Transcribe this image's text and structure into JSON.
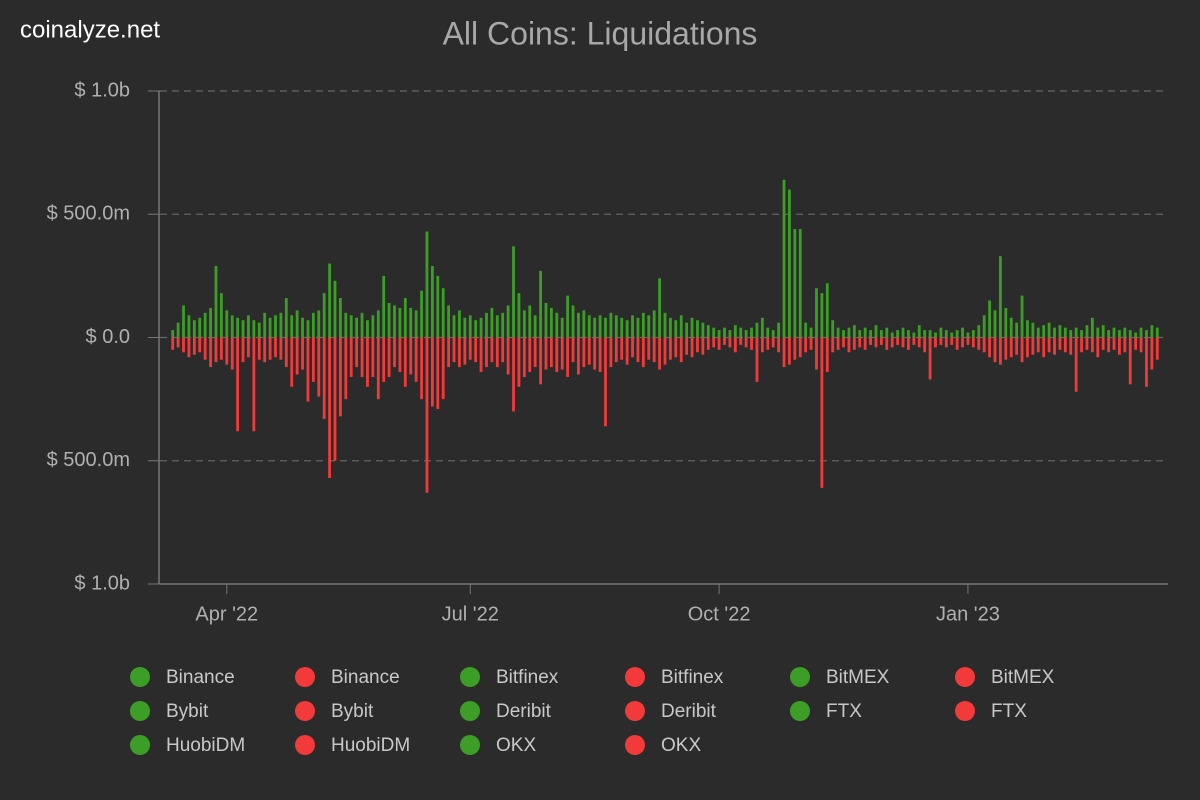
{
  "chart_data": {
    "type": "diverging-bar",
    "watermark": "coinalyze.net",
    "title": "All Coins: Liquidations",
    "ylim": [
      -1000000000,
      1000000000
    ],
    "yticks": [
      {
        "value": 1000000000,
        "label": "$ 1.0b"
      },
      {
        "value": 500000000,
        "label": "$ 500.0m"
      },
      {
        "value": 0,
        "label": "$ 0.0"
      },
      {
        "value": -500000000,
        "label": "$ 500.0m"
      },
      {
        "value": -1000000000,
        "label": "$ 1.0b"
      }
    ],
    "grid": true,
    "categories": [
      null,
      null,
      null,
      null,
      null,
      null,
      null,
      null,
      null,
      null,
      "Apr '22",
      null,
      null,
      null,
      null,
      null,
      null,
      null,
      null,
      null,
      null,
      null,
      null,
      null,
      null,
      null,
      null,
      null,
      null,
      null,
      null,
      null,
      null,
      null,
      null,
      null,
      null,
      null,
      null,
      null,
      null,
      null,
      null,
      null,
      null,
      null,
      null,
      null,
      null,
      null,
      null,
      null,
      null,
      null,
      null,
      "Jul '22",
      null,
      null,
      null,
      null,
      null,
      null,
      null,
      null,
      null,
      null,
      null,
      null,
      null,
      null,
      null,
      null,
      null,
      null,
      null,
      null,
      null,
      null,
      null,
      null,
      null,
      null,
      null,
      null,
      null,
      null,
      null,
      null,
      null,
      null,
      null,
      null,
      null,
      null,
      null,
      null,
      null,
      null,
      null,
      null,
      null,
      "Oct '22",
      null,
      null,
      null,
      null,
      null,
      null,
      null,
      null,
      null,
      null,
      null,
      null,
      null,
      null,
      null,
      null,
      null,
      null,
      null,
      null,
      null,
      null,
      null,
      null,
      null,
      null,
      null,
      null,
      null,
      null,
      null,
      null,
      null,
      null,
      null,
      null,
      null,
      null,
      null,
      null,
      null,
      null,
      null,
      null,
      null,
      "Jan '23",
      null,
      null,
      null,
      null,
      null,
      null,
      null,
      null,
      null,
      null,
      null,
      null,
      null,
      null,
      null,
      null,
      null,
      null,
      null,
      null,
      null,
      null,
      null,
      null,
      null,
      null,
      null,
      null,
      null,
      null,
      null,
      null,
      null,
      null,
      null
    ],
    "series": [
      {
        "color": "#3c9e26",
        "values": [
          30000000.0,
          60000000.0,
          130000000.0,
          90000000.0,
          70000000.0,
          80000000.0,
          100000000.0,
          120000000.0,
          290000000.0,
          180000000.0,
          110000000.0,
          90000000.0,
          80000000.0,
          70000000.0,
          90000000.0,
          70000000.0,
          60000000.0,
          100000000.0,
          80000000.0,
          90000000.0,
          100000000.0,
          160000000.0,
          90000000.0,
          110000000.0,
          80000000.0,
          70000000.0,
          100000000.0,
          110000000.0,
          180000000.0,
          300000000.0,
          230000000.0,
          160000000.0,
          100000000.0,
          90000000.0,
          80000000.0,
          100000000.0,
          70000000.0,
          90000000.0,
          110000000.0,
          250000000.0,
          140000000.0,
          130000000.0,
          120000000.0,
          160000000.0,
          120000000.0,
          110000000.0,
          190000000.0,
          430000000.0,
          290000000.0,
          250000000.0,
          200000000.0,
          130000000.0,
          90000000.0,
          110000000.0,
          80000000.0,
          90000000.0,
          70000000.0,
          80000000.0,
          100000000.0,
          120000000.0,
          90000000.0,
          100000000.0,
          130000000.0,
          370000000.0,
          180000000.0,
          110000000.0,
          130000000.0,
          90000000.0,
          270000000.0,
          140000000.0,
          120000000.0,
          100000000.0,
          80000000.0,
          170000000.0,
          130000000.0,
          100000000.0,
          110000000.0,
          90000000.0,
          80000000.0,
          90000000.0,
          80000000.0,
          100000000.0,
          90000000.0,
          80000000.0,
          70000000.0,
          90000000.0,
          80000000.0,
          100000000.0,
          90000000.0,
          110000000.0,
          240000000.0,
          100000000.0,
          80000000.0,
          70000000.0,
          90000000.0,
          60000000.0,
          80000000.0,
          70000000.0,
          60000000.0,
          50000000.0,
          40000000.0,
          30000000.0,
          40000000.0,
          30000000.0,
          50000000.0,
          40000000.0,
          30000000.0,
          40000000.0,
          60000000.0,
          80000000.0,
          40000000.0,
          30000000.0,
          60000000.0,
          640000000.0,
          600000000.0,
          440000000.0,
          440000000.0,
          60000000.0,
          40000000.0,
          200000000.0,
          180000000.0,
          220000000.0,
          70000000.0,
          40000000.0,
          30000000.0,
          40000000.0,
          50000000.0,
          30000000.0,
          40000000.0,
          30000000.0,
          50000000.0,
          30000000.0,
          40000000.0,
          20000000.0,
          30000000.0,
          40000000.0,
          30000000.0,
          20000000.0,
          50000000.0,
          30000000.0,
          30000000.0,
          20000000.0,
          40000000.0,
          30000000.0,
          20000000.0,
          30000000.0,
          40000000.0,
          20000000.0,
          30000000.0,
          50000000.0,
          90000000.0,
          150000000.0,
          110000000.0,
          330000000.0,
          120000000.0,
          80000000.0,
          60000000.0,
          170000000.0,
          70000000.0,
          60000000.0,
          40000000.0,
          50000000.0,
          60000000.0,
          40000000.0,
          50000000.0,
          40000000.0,
          30000000.0,
          40000000.0,
          30000000.0,
          50000000.0,
          80000000.0,
          40000000.0,
          50000000.0,
          30000000.0,
          40000000.0,
          30000000.0,
          40000000.0,
          30000000.0,
          20000000.0,
          40000000.0,
          30000000.0,
          50000000.0,
          40000000.0
        ]
      },
      {
        "color": "#f23a3a",
        "values": [
          -50000000.0,
          -40000000.0,
          -60000000.0,
          -80000000.0,
          -70000000.0,
          -60000000.0,
          -90000000.0,
          -120000000.0,
          -100000000.0,
          -90000000.0,
          -110000000.0,
          -130000000.0,
          -380000000.0,
          -100000000.0,
          -80000000.0,
          -380000000.0,
          -90000000.0,
          -100000000.0,
          -90000000.0,
          -80000000.0,
          -90000000.0,
          -120000000.0,
          -200000000.0,
          -150000000.0,
          -130000000.0,
          -260000000.0,
          -180000000.0,
          -240000000.0,
          -330000000.0,
          -570000000.0,
          -500000000.0,
          -320000000.0,
          -250000000.0,
          -160000000.0,
          -120000000.0,
          -160000000.0,
          -200000000.0,
          -160000000.0,
          -250000000.0,
          -180000000.0,
          -160000000.0,
          -120000000.0,
          -140000000.0,
          -200000000.0,
          -150000000.0,
          -180000000.0,
          -250000000.0,
          -630000000.0,
          -280000000.0,
          -290000000.0,
          -250000000.0,
          -120000000.0,
          -100000000.0,
          -120000000.0,
          -110000000.0,
          -90000000.0,
          -100000000.0,
          -140000000.0,
          -120000000.0,
          -100000000.0,
          -120000000.0,
          -100000000.0,
          -150000000.0,
          -300000000.0,
          -200000000.0,
          -160000000.0,
          -140000000.0,
          -120000000.0,
          -190000000.0,
          -130000000.0,
          -120000000.0,
          -140000000.0,
          -130000000.0,
          -160000000.0,
          -100000000.0,
          -150000000.0,
          -120000000.0,
          -110000000.0,
          -130000000.0,
          -140000000.0,
          -360000000.0,
          -120000000.0,
          -100000000.0,
          -90000000.0,
          -110000000.0,
          -80000000.0,
          -100000000.0,
          -120000000.0,
          -90000000.0,
          -100000000.0,
          -130000000.0,
          -110000000.0,
          -90000000.0,
          -80000000.0,
          -100000000.0,
          -70000000.0,
          -80000000.0,
          -60000000.0,
          -70000000.0,
          -50000000.0,
          -40000000.0,
          -50000000.0,
          -30000000.0,
          -40000000.0,
          -60000000.0,
          -30000000.0,
          -40000000.0,
          -50000000.0,
          -180000000.0,
          -60000000.0,
          -50000000.0,
          -40000000.0,
          -60000000.0,
          -120000000.0,
          -110000000.0,
          -90000000.0,
          -80000000.0,
          -60000000.0,
          -50000000.0,
          -130000000.0,
          -610000000.0,
          -140000000.0,
          -60000000.0,
          -50000000.0,
          -40000000.0,
          -60000000.0,
          -50000000.0,
          -40000000.0,
          -50000000.0,
          -30000000.0,
          -40000000.0,
          -30000000.0,
          -50000000.0,
          -40000000.0,
          -30000000.0,
          -40000000.0,
          -50000000.0,
          -30000000.0,
          -40000000.0,
          -60000000.0,
          -170000000.0,
          -40000000.0,
          -30000000.0,
          -40000000.0,
          -30000000.0,
          -50000000.0,
          -40000000.0,
          -30000000.0,
          -40000000.0,
          -50000000.0,
          -60000000.0,
          -80000000.0,
          -100000000.0,
          -110000000.0,
          -90000000.0,
          -80000000.0,
          -70000000.0,
          -100000000.0,
          -80000000.0,
          -70000000.0,
          -60000000.0,
          -80000000.0,
          -60000000.0,
          -70000000.0,
          -50000000.0,
          -60000000.0,
          -70000000.0,
          -220000000.0,
          -60000000.0,
          -50000000.0,
          -60000000.0,
          -80000000.0,
          -50000000.0,
          -60000000.0,
          -50000000.0,
          -70000000.0,
          -60000000.0,
          -190000000.0,
          -50000000.0,
          -60000000.0,
          -200000000.0,
          -130000000.0,
          -90000000.0
        ]
      }
    ],
    "legend": [
      {
        "name": "Binance",
        "color": "#3c9e26"
      },
      {
        "name": "Binance",
        "color": "#f23a3a"
      },
      {
        "name": "Bitfinex",
        "color": "#3c9e26"
      },
      {
        "name": "Bitfinex",
        "color": "#f23a3a"
      },
      {
        "name": "BitMEX",
        "color": "#3c9e26"
      },
      {
        "name": "BitMEX",
        "color": "#f23a3a"
      },
      {
        "name": "Bybit",
        "color": "#3c9e26"
      },
      {
        "name": "Bybit",
        "color": "#f23a3a"
      },
      {
        "name": "Deribit",
        "color": "#3c9e26"
      },
      {
        "name": "Deribit",
        "color": "#f23a3a"
      },
      {
        "name": "FTX",
        "color": "#3c9e26"
      },
      {
        "name": "FTX",
        "color": "#f23a3a"
      },
      {
        "name": "HuobiDM",
        "color": "#3c9e26"
      },
      {
        "name": "HuobiDM",
        "color": "#f23a3a"
      },
      {
        "name": "OKX",
        "color": "#3c9e26"
      },
      {
        "name": "OKX",
        "color": "#f23a3a"
      }
    ]
  }
}
